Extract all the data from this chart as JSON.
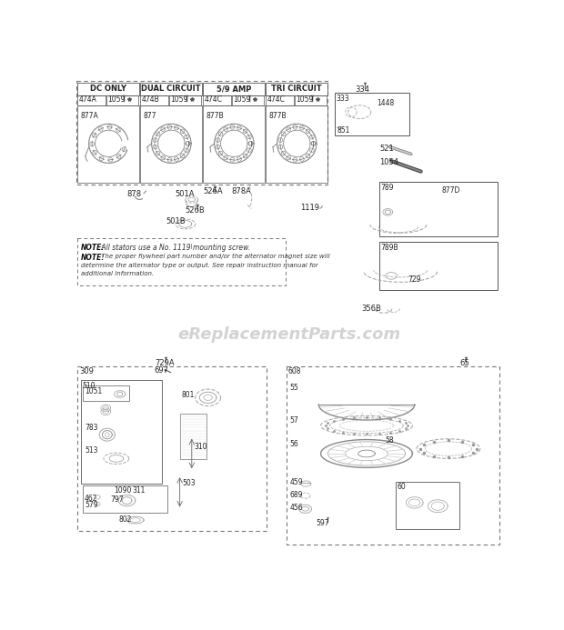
{
  "background_color": "#ffffff",
  "watermark": "eReplacementParts.com",
  "top_sections": [
    "DC ONLY",
    "DUAL CIRCUIT",
    "5/9 AMP",
    "TRI CIRCUIT"
  ],
  "top_part_labels": [
    [
      "474A",
      "1059",
      "877A"
    ],
    [
      "474B",
      "1059",
      "877"
    ],
    [
      "474C",
      "1059",
      "877B"
    ],
    [
      "474C",
      "1059",
      "877B"
    ]
  ],
  "note_lines": [
    "NOTE: All stators use a No. 1119 mounting screw.",
    "NOTE: The proper flywheel part number and/or the alternator magnet size will",
    "determine the alternator type or output. See repair instruction manual for",
    "additional information."
  ]
}
